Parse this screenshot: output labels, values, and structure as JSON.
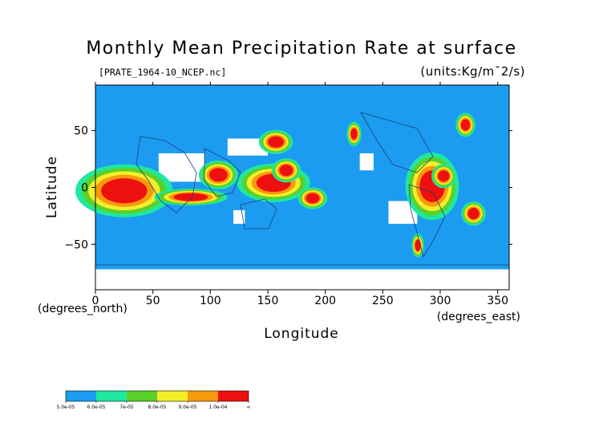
{
  "chart_data": {
    "type": "heatmap",
    "title": "Monthly Mean Precipitation Rate at surface",
    "subtitle": "[PRATE_1964-10_NCEP.nc]",
    "units": "(units:Kg/m¯2/s)",
    "xlabel": "Longitude",
    "ylabel": "Latitude",
    "xunit": "(degrees_east)",
    "yunit": "(degrees_north)",
    "xlim": [
      0,
      360
    ],
    "ylim": [
      -90,
      90
    ],
    "xticks": [
      0,
      50,
      100,
      150,
      200,
      250,
      300,
      350
    ],
    "yticks": [
      -50,
      0,
      50
    ],
    "colorbar": {
      "labels": [
        "5.0e-05",
        "6.0e-05",
        "7e-05",
        "8.0e-05",
        "9.0e-05",
        "1.0e-04",
        "∞"
      ],
      "colors": [
        "#1c9cf0",
        "#1ee8a0",
        "#5cd02a",
        "#f4ee2a",
        "#f79a0c",
        "#ee0f0f"
      ],
      "low_color": "#1c9cf0",
      "missing_color": "#ffffff"
    },
    "regions": [
      {
        "lon": 5,
        "lat": 8,
        "w": 40,
        "h": 22,
        "level": 5
      },
      {
        "lon": 68,
        "lat": -5,
        "w": 30,
        "h": 7,
        "level": 5
      },
      {
        "lon": 99,
        "lat": 17,
        "w": 16,
        "h": 12,
        "level": 5
      },
      {
        "lon": 140,
        "lat": 12,
        "w": 30,
        "h": 16,
        "level": 5
      },
      {
        "lon": 150,
        "lat": 45,
        "w": 14,
        "h": 10,
        "level": 5
      },
      {
        "lon": 160,
        "lat": 20,
        "w": 12,
        "h": 10,
        "level": 5
      },
      {
        "lon": 183,
        "lat": -5,
        "w": 12,
        "h": 9,
        "level": 5
      },
      {
        "lon": 282,
        "lat": 15,
        "w": 22,
        "h": 28,
        "level": 5
      },
      {
        "lon": 298,
        "lat": 15,
        "w": 10,
        "h": 10,
        "level": 5
      },
      {
        "lon": 324,
        "lat": -18,
        "w": 10,
        "h": 10,
        "level": 5
      },
      {
        "lon": 278,
        "lat": -46,
        "w": 5,
        "h": 10,
        "level": 5
      },
      {
        "lon": 222,
        "lat": 52,
        "w": 6,
        "h": 10,
        "level": 5
      },
      {
        "lon": 318,
        "lat": 60,
        "w": 8,
        "h": 10,
        "level": 5
      }
    ],
    "missing_areas": [
      {
        "lon": 0,
        "lat": -72,
        "w": 360,
        "h": 18
      },
      {
        "lon": 55,
        "lat": 30,
        "w": 40,
        "h": 25
      },
      {
        "lon": 115,
        "lat": 43,
        "w": 35,
        "h": 15
      },
      {
        "lon": 230,
        "lat": 30,
        "w": 12,
        "h": 15
      },
      {
        "lon": 255,
        "lat": -12,
        "w": 25,
        "h": 20
      },
      {
        "lon": 120,
        "lat": -20,
        "w": 10,
        "h": 12
      }
    ],
    "grid": false,
    "legend_position": "bottom"
  }
}
